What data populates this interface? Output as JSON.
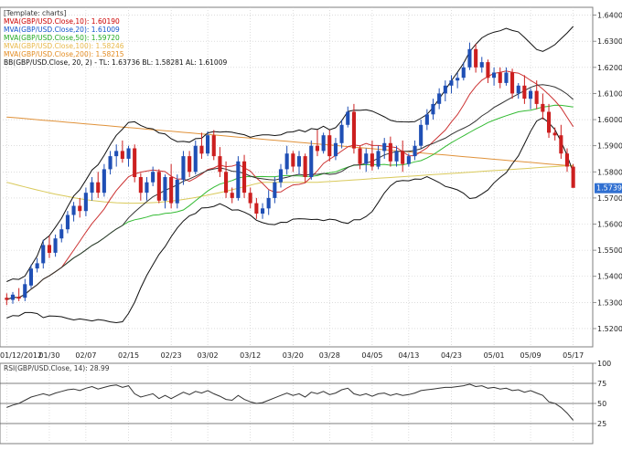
{
  "legend": {
    "template": "[Template: charts]",
    "items": [
      {
        "label": "MVA(GBP/USD.Close,10): 1.60190",
        "color": "#cc0000"
      },
      {
        "label": "MVA(GBP/USD.Close,20): 1.61009",
        "color": "#1155cc"
      },
      {
        "label": "MVA(GBP/USD.Close,50): 1.59720",
        "color": "#22aa22"
      },
      {
        "label": "MVA(GBP/USD.Close,100): 1.58246",
        "color": "#e8b84a"
      },
      {
        "label": "MVA(GBP/USD.Close,200): 1.58215",
        "color": "#e38c22"
      }
    ],
    "bb": "BB(GBP/USD.Close, 20, 2) - TL: 1.63736  BL: 1.58281  AL: 1.61009"
  },
  "rsi_label": "RSI(GBP/USD.Close, 14): 28.99",
  "colors": {
    "up": "#1f4fb5",
    "down": "#cc1f1f",
    "ma10": "#cc3333",
    "ma20": "#333333",
    "ma50": "#33bb33",
    "ma100": "#d9c95a",
    "ma200": "#e0923a",
    "bb": "#111111",
    "grid": "#c8c8c8",
    "rsi": "#333333"
  },
  "chart_data": [
    {
      "type": "candlestick",
      "ylim": [
        1.513,
        1.643
      ],
      "x_ticks": [
        "01/12/2012",
        "01/30",
        "02/07",
        "02/15",
        "02/23",
        "03/02",
        "03/12",
        "03/20",
        "03/28",
        "04/05",
        "04/13",
        "04/23",
        "05/01",
        "05/09",
        "05/17"
      ],
      "y_ticks": [
        "1.6400",
        "1.6300",
        "1.6200",
        "1.6100",
        "1.6000",
        "1.5900",
        "1.5800",
        "1.5700",
        "1.5600",
        "1.5500",
        "1.5400",
        "1.5300",
        "1.5200"
      ],
      "last_price": "1.57390",
      "candles": [
        [
          1.5318,
          1.5335,
          1.529,
          1.531
        ],
        [
          1.531,
          1.534,
          1.5295,
          1.533
        ],
        [
          1.5322,
          1.5355,
          1.5305,
          1.5315
        ],
        [
          1.5318,
          1.539,
          1.5305,
          1.537
        ],
        [
          1.5365,
          1.5445,
          1.5355,
          1.543
        ],
        [
          1.543,
          1.547,
          1.5415,
          1.545
        ],
        [
          1.545,
          1.554,
          1.543,
          1.552
        ],
        [
          1.552,
          1.5555,
          1.547,
          1.549
        ],
        [
          1.549,
          1.556,
          1.5475,
          1.5545
        ],
        [
          1.5545,
          1.56,
          1.553,
          1.558
        ],
        [
          1.558,
          1.565,
          1.5565,
          1.5635
        ],
        [
          1.5635,
          1.5685,
          1.561,
          1.567
        ],
        [
          1.567,
          1.57,
          1.5625,
          1.565
        ],
        [
          1.565,
          1.574,
          1.563,
          1.572
        ],
        [
          1.572,
          1.578,
          1.569,
          1.576
        ],
        [
          1.576,
          1.58,
          1.57,
          1.572
        ],
        [
          1.572,
          1.583,
          1.5705,
          1.581
        ],
        [
          1.581,
          1.588,
          1.579,
          1.586
        ],
        [
          1.586,
          1.5905,
          1.582,
          1.588
        ],
        [
          1.588,
          1.592,
          1.5835,
          1.585
        ],
        [
          1.585,
          1.59,
          1.582,
          1.589
        ],
        [
          1.589,
          1.5905,
          1.576,
          1.578
        ],
        [
          1.578,
          1.5795,
          1.569,
          1.572
        ],
        [
          1.572,
          1.578,
          1.569,
          1.576
        ],
        [
          1.576,
          1.582,
          1.5745,
          1.58
        ],
        [
          1.58,
          1.581,
          1.568,
          1.569
        ],
        [
          1.569,
          1.579,
          1.566,
          1.578
        ],
        [
          1.578,
          1.583,
          1.566,
          1.568
        ],
        [
          1.568,
          1.579,
          1.566,
          1.577
        ],
        [
          1.577,
          1.588,
          1.575,
          1.586
        ],
        [
          1.586,
          1.588,
          1.578,
          1.58
        ],
        [
          1.58,
          1.592,
          1.579,
          1.59
        ],
        [
          1.59,
          1.595,
          1.585,
          1.587
        ],
        [
          1.587,
          1.5955,
          1.586,
          1.594
        ],
        [
          1.594,
          1.596,
          1.5845,
          1.586
        ],
        [
          1.586,
          1.5895,
          1.578,
          1.58
        ],
        [
          1.58,
          1.584,
          1.57,
          1.572
        ],
        [
          1.572,
          1.574,
          1.568,
          1.57
        ],
        [
          1.57,
          1.586,
          1.569,
          1.584
        ],
        [
          1.584,
          1.5865,
          1.57,
          1.572
        ],
        [
          1.572,
          1.574,
          1.566,
          1.568
        ],
        [
          1.568,
          1.57,
          1.562,
          1.564
        ],
        [
          1.564,
          1.568,
          1.562,
          1.566
        ],
        [
          1.566,
          1.573,
          1.5635,
          1.57
        ],
        [
          1.57,
          1.578,
          1.568,
          1.576
        ],
        [
          1.576,
          1.583,
          1.574,
          1.581
        ],
        [
          1.581,
          1.59,
          1.579,
          1.587
        ],
        [
          1.587,
          1.588,
          1.58,
          1.582
        ],
        [
          1.582,
          1.588,
          1.579,
          1.586
        ],
        [
          1.586,
          1.587,
          1.576,
          1.578
        ],
        [
          1.578,
          1.592,
          1.577,
          1.59
        ],
        [
          1.59,
          1.596,
          1.586,
          1.588
        ],
        [
          1.588,
          1.595,
          1.587,
          1.594
        ],
        [
          1.594,
          1.596,
          1.584,
          1.586
        ],
        [
          1.586,
          1.593,
          1.5845,
          1.591
        ],
        [
          1.591,
          1.6,
          1.589,
          1.598
        ],
        [
          1.598,
          1.605,
          1.597,
          1.603
        ],
        [
          1.603,
          1.606,
          1.587,
          1.589
        ],
        [
          1.589,
          1.59,
          1.581,
          1.583
        ],
        [
          1.583,
          1.589,
          1.58,
          1.587
        ],
        [
          1.587,
          1.592,
          1.5805,
          1.582
        ],
        [
          1.582,
          1.59,
          1.581,
          1.588
        ],
        [
          1.588,
          1.593,
          1.585,
          1.591
        ],
        [
          1.591,
          1.5935,
          1.582,
          1.584
        ],
        [
          1.584,
          1.59,
          1.582,
          1.588
        ],
        [
          1.588,
          1.592,
          1.58,
          1.583
        ],
        [
          1.583,
          1.587,
          1.582,
          1.586
        ],
        [
          1.586,
          1.592,
          1.5845,
          1.59
        ],
        [
          1.59,
          1.6,
          1.589,
          1.598
        ],
        [
          1.598,
          1.604,
          1.596,
          1.602
        ],
        [
          1.602,
          1.608,
          1.6,
          1.606
        ],
        [
          1.606,
          1.612,
          1.604,
          1.61
        ],
        [
          1.61,
          1.615,
          1.607,
          1.613
        ],
        [
          1.613,
          1.617,
          1.61,
          1.615
        ],
        [
          1.615,
          1.618,
          1.612,
          1.616
        ],
        [
          1.616,
          1.622,
          1.615,
          1.62
        ],
        [
          1.62,
          1.6295,
          1.619,
          1.627
        ],
        [
          1.627,
          1.629,
          1.618,
          1.62
        ],
        [
          1.62,
          1.624,
          1.618,
          1.622
        ],
        [
          1.622,
          1.623,
          1.614,
          1.616
        ],
        [
          1.616,
          1.62,
          1.613,
          1.618
        ],
        [
          1.618,
          1.62,
          1.612,
          1.614
        ],
        [
          1.614,
          1.62,
          1.613,
          1.618
        ],
        [
          1.618,
          1.6195,
          1.608,
          1.61
        ],
        [
          1.61,
          1.614,
          1.608,
          1.613
        ],
        [
          1.613,
          1.617,
          1.606,
          1.608
        ],
        [
          1.608,
          1.612,
          1.604,
          1.611
        ],
        [
          1.611,
          1.615,
          1.604,
          1.606
        ],
        [
          1.606,
          1.61,
          1.6,
          1.603
        ],
        [
          1.603,
          1.606,
          1.593,
          1.595
        ],
        [
          1.595,
          1.597,
          1.592,
          1.594
        ],
        [
          1.594,
          1.598,
          1.585,
          1.587
        ],
        [
          1.587,
          1.589,
          1.58,
          1.582
        ],
        [
          1.582,
          1.583,
          1.574,
          1.5739
        ]
      ]
    },
    {
      "type": "line",
      "name": "RSI",
      "ylim": [
        0,
        100
      ],
      "y_ticks": [
        100,
        75,
        50,
        25
      ],
      "ref_lines": [
        75,
        50,
        25
      ],
      "values": [
        45,
        48,
        50,
        54,
        58,
        60,
        62,
        60,
        63,
        65,
        67,
        68,
        66,
        69,
        71,
        68,
        70,
        72,
        73,
        70,
        72,
        62,
        58,
        60,
        62,
        56,
        60,
        56,
        60,
        64,
        61,
        65,
        63,
        66,
        62,
        59,
        55,
        54,
        60,
        55,
        52,
        50,
        51,
        54,
        57,
        60,
        63,
        60,
        62,
        58,
        64,
        62,
        65,
        61,
        63,
        67,
        69,
        62,
        60,
        62,
        59,
        62,
        63,
        60,
        62,
        60,
        61,
        63,
        66,
        67,
        68,
        69,
        70,
        70,
        71,
        72,
        74,
        71,
        72,
        69,
        70,
        68,
        69,
        66,
        67,
        64,
        66,
        63,
        60,
        52,
        50,
        45,
        38,
        29
      ]
    }
  ]
}
